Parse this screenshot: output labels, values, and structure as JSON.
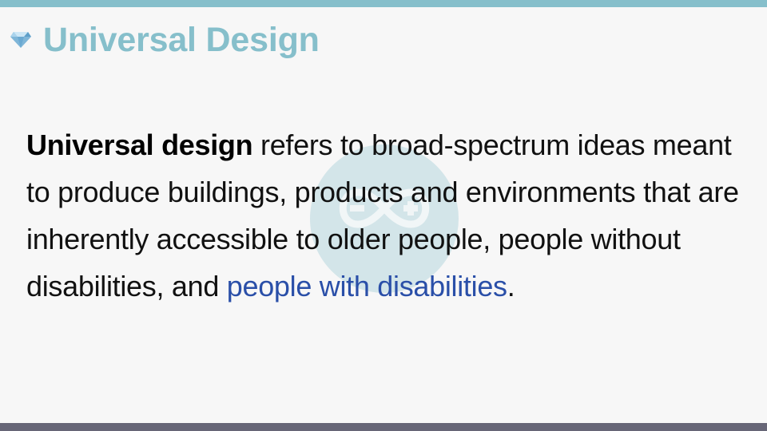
{
  "slide": {
    "title": "Universal Design",
    "title_icon": "gem-icon",
    "body": {
      "term": "Universal design",
      "text": " refers to broad-spectrum ideas meant to produce buildings, products and environments that are inherently accessible to older people, people without disabilities, and ",
      "link": "people with disabilities",
      "end": "."
    }
  },
  "colors": {
    "accent": "#86bfcb",
    "footer": "#676677",
    "link": "#2a4fa8",
    "background": "#f7f7f7"
  }
}
